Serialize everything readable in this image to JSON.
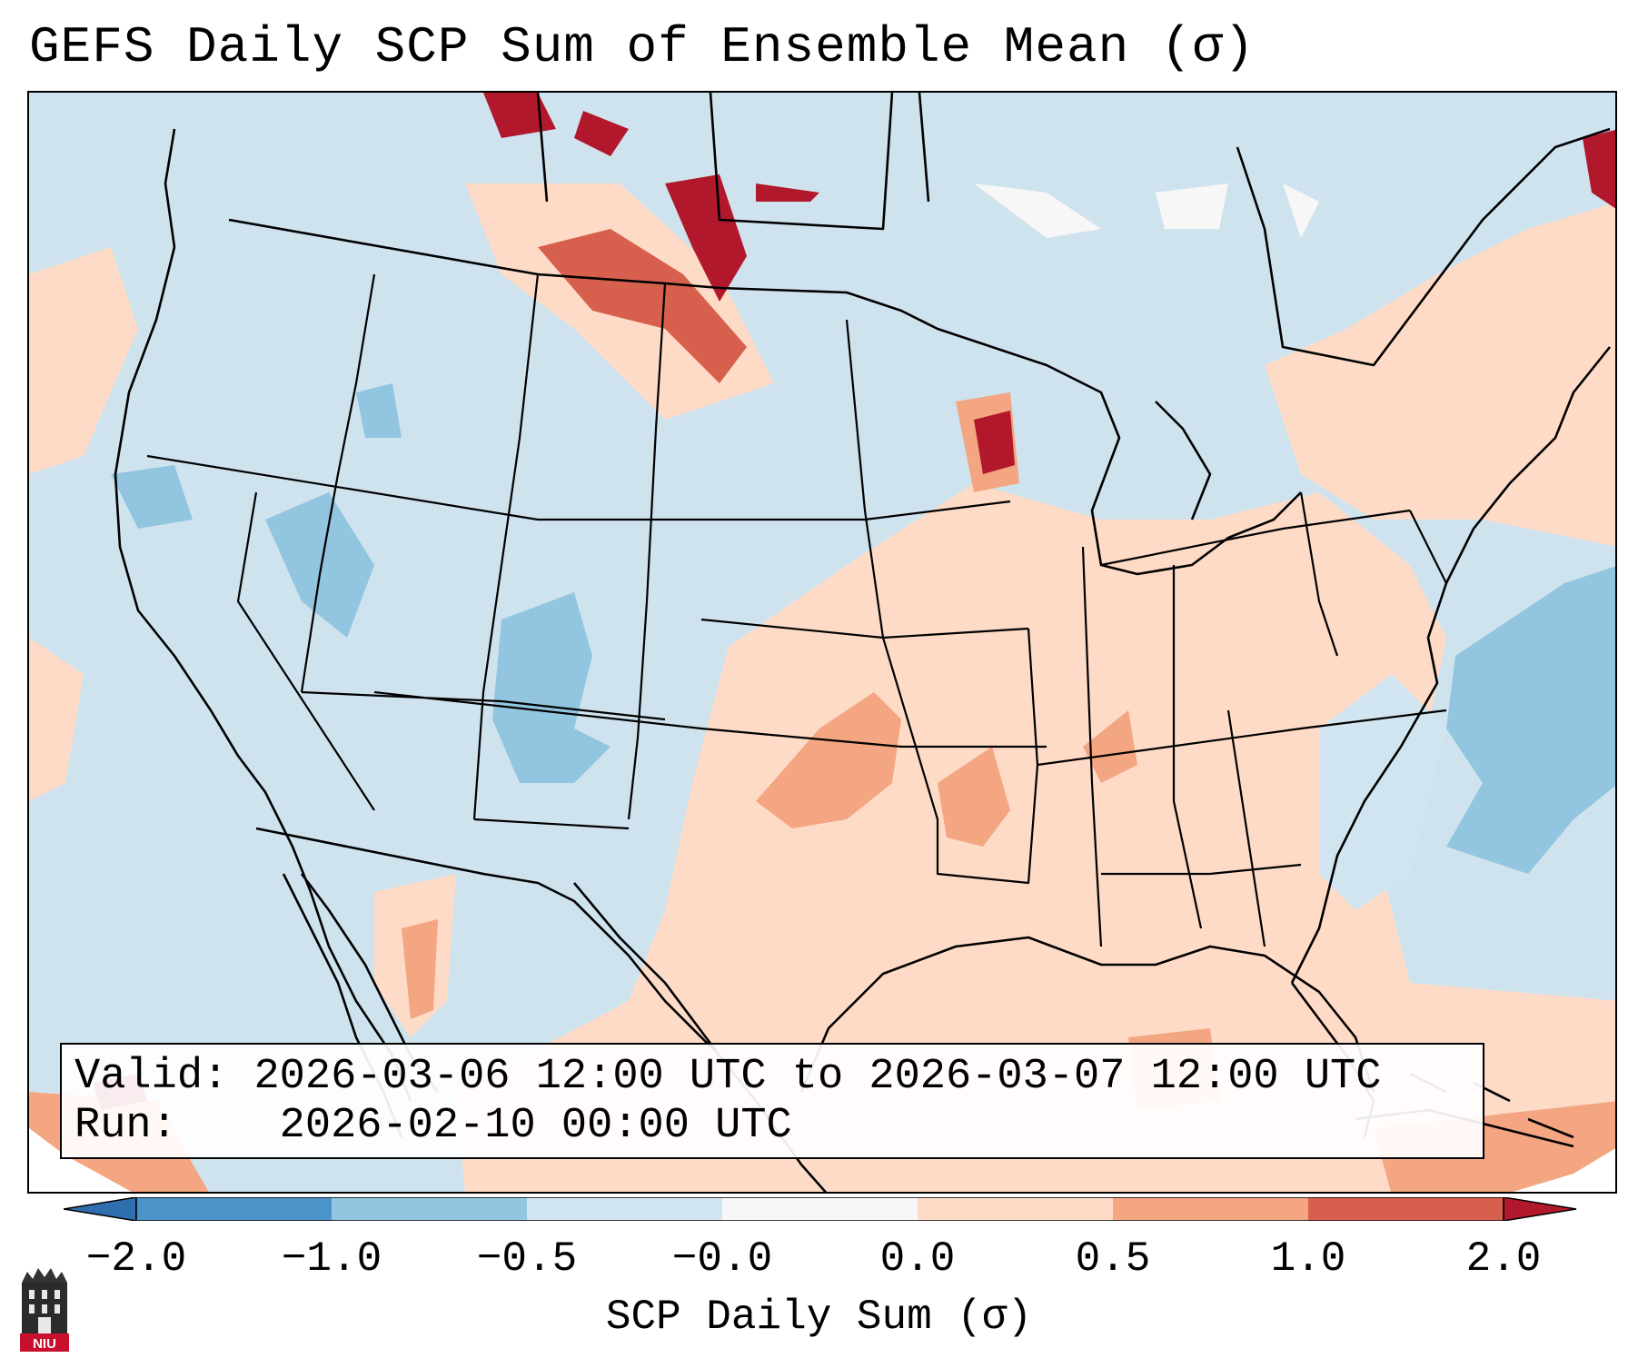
{
  "title": "GEFS Daily SCP Sum of Ensemble Mean (σ)",
  "info": {
    "valid_label": "Valid:",
    "valid_value": "2026-03-06 12:00 UTC to 2026-03-07 12:00 UTC",
    "run_label": "Run:",
    "run_value": "2026-02-10 00:00 UTC"
  },
  "colorbar": {
    "title": "SCP Daily Sum (σ)",
    "tick_labels": [
      "−2.0",
      "−1.0",
      "−0.5",
      "−0.0",
      "0.0",
      "0.5",
      "1.0",
      "2.0"
    ],
    "colors": {
      "below_min": "#2f6fb0",
      "neg_2_to_1": "#4b93c8",
      "neg_1_to_05": "#92c5df",
      "neg_05_to_0": "#d1e5f0",
      "near_zero": "#f7f7f7",
      "pos_0_to_05": "#fddbc7",
      "pos_05_to_1": "#f4a582",
      "pos_1_to_2": "#d6604d",
      "above_max": "#b2182b"
    }
  },
  "logo": {
    "text": "NIU",
    "accent_color": "#c8102e"
  },
  "map": {
    "background_color": "#d1e5f0",
    "ocean_color": "#d1e5f0"
  }
}
